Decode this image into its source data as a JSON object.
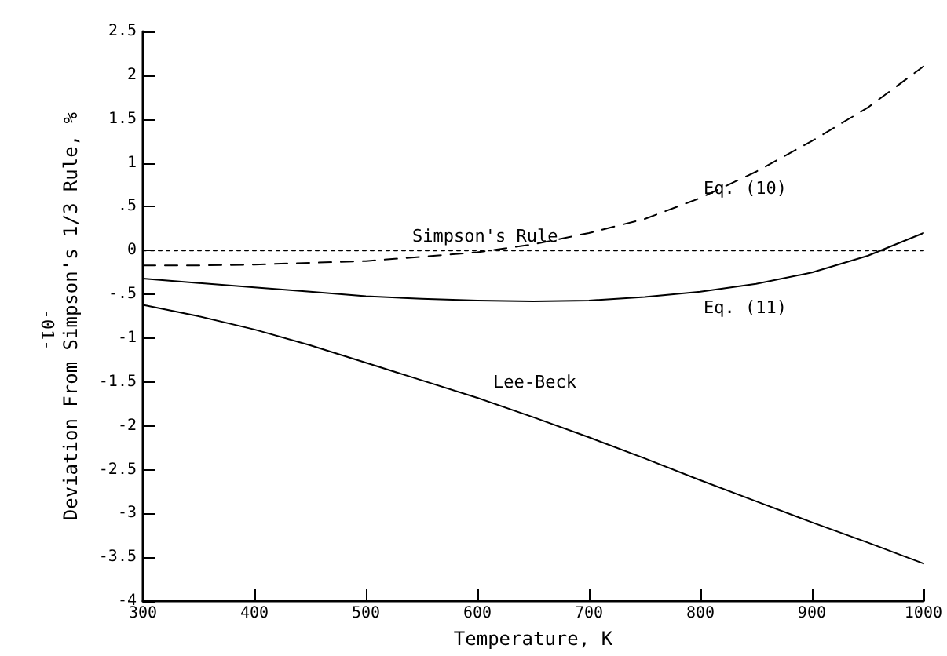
{
  "chart_data": {
    "type": "line",
    "xlabel": "Temperature, K",
    "ylabel": "Deviation From Simpson's 1/3 Rule, %",
    "x": [
      300,
      350,
      400,
      450,
      500,
      550,
      600,
      650,
      700,
      750,
      800,
      850,
      900,
      950,
      1000
    ],
    "series": [
      {
        "name": "Simpson's Rule",
        "color": "#000000",
        "line_style": "dotted",
        "values": [
          0,
          0,
          0,
          0,
          0,
          0,
          0,
          0,
          0,
          0,
          0,
          0,
          0,
          0,
          0
        ]
      },
      {
        "name": "Eq. (10)",
        "color": "#000000",
        "line_style": "dashed",
        "values": [
          -0.17,
          -0.17,
          -0.16,
          -0.14,
          -0.12,
          -0.07,
          -0.02,
          0.07,
          0.2,
          0.36,
          0.6,
          0.9,
          1.25,
          1.63,
          2.1
        ]
      },
      {
        "name": "Eq. (11)",
        "color": "#000000",
        "line_style": "solid",
        "values": [
          -0.32,
          -0.37,
          -0.42,
          -0.47,
          -0.52,
          -0.55,
          -0.57,
          -0.58,
          -0.57,
          -0.53,
          -0.47,
          -0.38,
          -0.25,
          -0.06,
          0.2
        ]
      },
      {
        "name": "Lee-Beck",
        "color": "#000000",
        "line_style": "solid",
        "values": [
          -0.62,
          -0.75,
          -0.9,
          -1.08,
          -1.28,
          -1.48,
          -1.68,
          -1.9,
          -2.13,
          -2.37,
          -2.62,
          -2.86,
          -3.1,
          -3.33,
          -3.57
        ]
      }
    ],
    "xlim": [
      300,
      1000
    ],
    "xticks": [
      300,
      400,
      500,
      600,
      700,
      800,
      900,
      1000
    ],
    "ylim": [
      -4,
      2.5
    ],
    "yticks": [
      -4,
      {
        "value": -3.5,
        "label": "-3.5"
      },
      -3,
      {
        "value": -2.5,
        "label": "-2.5"
      },
      -2,
      {
        "value": -1.5,
        "label": "-1.5"
      },
      -1,
      {
        "value": -0.5,
        "label": "-.5"
      },
      0,
      {
        "value": 0.5,
        "label": ".5"
      },
      1,
      {
        "value": 1.5,
        "label": "1.5"
      },
      2,
      {
        "value": 2.5,
        "label": "2.5"
      }
    ],
    "annotations": [
      "-01-"
    ],
    "grid": false,
    "marker": "none"
  }
}
